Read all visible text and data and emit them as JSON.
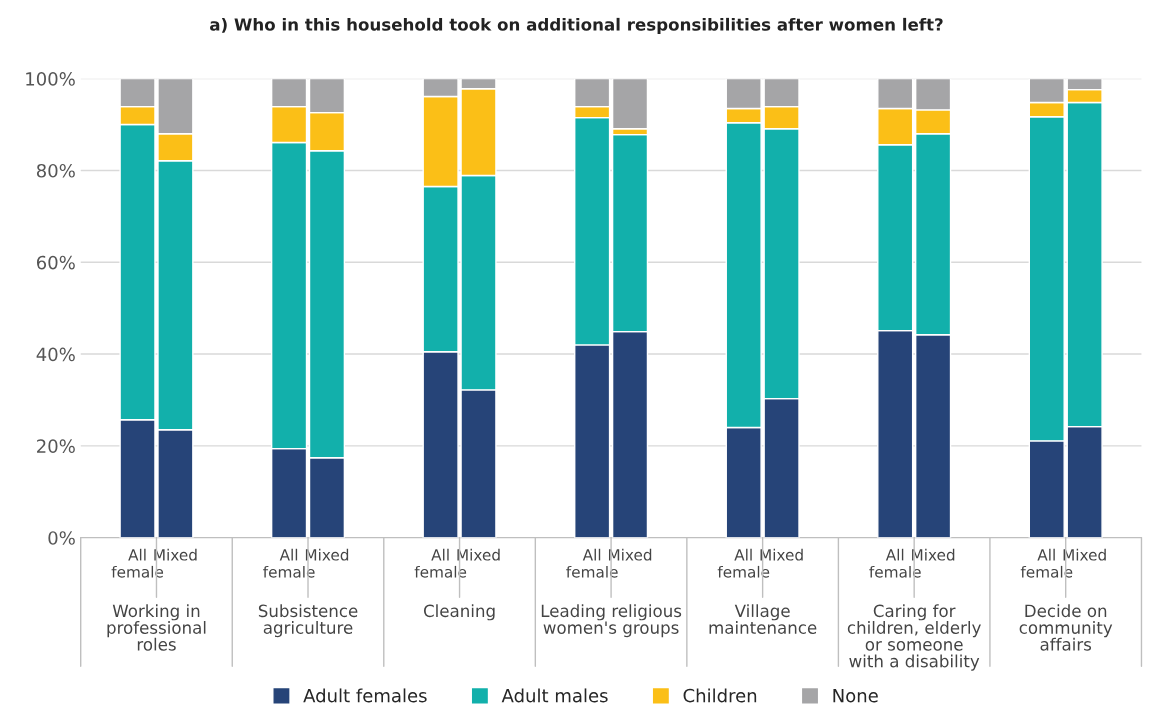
{
  "chart_data": {
    "type": "bar",
    "title": "a) Who in this household took on additional responsibilities after women left?",
    "categories": [
      "All\nfemale",
      "Mixed",
      "All\nfemale",
      "Mixed",
      "All\nfemale",
      "Mixed",
      "All\nfemale",
      "Mixed",
      "All\nfemale",
      "Mixed",
      "All\nfemale",
      "Mixed",
      "All\nfemale",
      "Mixed"
    ],
    "annotations": [
      "Working in\nprofessional\nroles",
      "Subsistence\nagriculture",
      "Cleaning",
      "Leading religious\nwomen's groups",
      "Village\nmaintenance",
      "Caring for\nchildren, elderly\nor someone\nwith a disability",
      "Decide on\ncommunity\naffairs"
    ],
    "stacked": true,
    "series": [
      {
        "name": "Adult females",
        "color": "#264478",
        "values": [
          25.7,
          23.5,
          19.4,
          17.4,
          40.5,
          32.2,
          42.0,
          44.9,
          24.0,
          30.3,
          45.1,
          44.2,
          21.1,
          24.2
        ]
      },
      {
        "name": "Adult males",
        "color": "#12b0ab",
        "values": [
          64.3,
          58.6,
          66.7,
          66.9,
          36.0,
          46.7,
          49.5,
          42.9,
          66.4,
          58.8,
          40.5,
          43.8,
          70.6,
          70.6
        ]
      },
      {
        "name": "Children",
        "color": "#fbbf17",
        "values": [
          3.9,
          5.9,
          7.8,
          8.3,
          19.6,
          18.9,
          2.4,
          1.3,
          3.1,
          4.8,
          7.9,
          5.2,
          3.1,
          2.8
        ]
      },
      {
        "name": "None",
        "color": "#a5a5a7",
        "values": [
          6.1,
          12.0,
          6.1,
          7.4,
          3.9,
          2.2,
          6.1,
          10.9,
          6.5,
          6.1,
          6.5,
          6.8,
          5.2,
          2.4
        ]
      }
    ],
    "ylim": [
      0,
      100
    ],
    "yticks": [
      {
        "value": 0,
        "label": "0%"
      },
      {
        "value": 20,
        "label": "20%"
      },
      {
        "value": 40,
        "label": "40%"
      },
      {
        "value": 60,
        "label": "60%"
      },
      {
        "value": 80,
        "label": "80%"
      },
      {
        "value": 100,
        "label": "100%"
      }
    ],
    "grid": "y",
    "legend": "bottom"
  }
}
